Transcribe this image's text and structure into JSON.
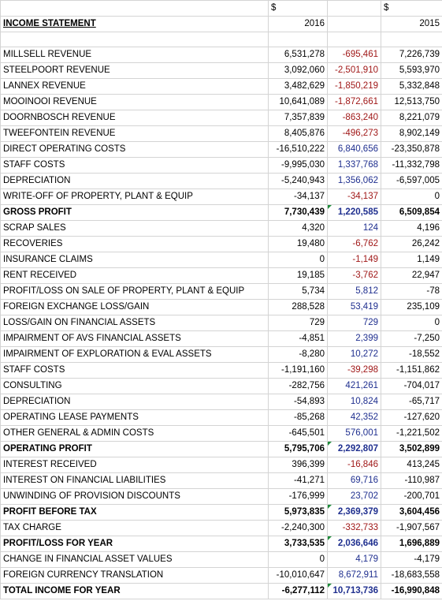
{
  "header": {
    "currency_2016": "$",
    "currency_2015": "$",
    "title": "INCOME STATEMENT",
    "year_2016": "2016",
    "year_2015": "2015"
  },
  "rows": [
    {
      "label": "MILLSELL REVENUE",
      "v2016": "6,531,278",
      "diff": "-695,461",
      "dsign": "neg",
      "v2015": "7,226,739"
    },
    {
      "label": "STEELPOORT REVENUE",
      "v2016": "3,092,060",
      "diff": "-2,501,910",
      "dsign": "neg",
      "v2015": "5,593,970"
    },
    {
      "label": "LANNEX REVENUE",
      "v2016": "3,482,629",
      "diff": "-1,850,219",
      "dsign": "neg",
      "v2015": "5,332,848"
    },
    {
      "label": "MOOINOOI REVENUE",
      "v2016": "10,641,089",
      "diff": "-1,872,661",
      "dsign": "neg",
      "v2015": "12,513,750"
    },
    {
      "label": "DOORNBOSCH REVENUE",
      "v2016": "7,357,839",
      "diff": "-863,240",
      "dsign": "neg",
      "v2015": "8,221,079"
    },
    {
      "label": "TWEEFONTEIN REVENUE",
      "v2016": "8,405,876",
      "diff": "-496,273",
      "dsign": "neg",
      "v2015": "8,902,149"
    },
    {
      "label": "DIRECT OPERATING COSTS",
      "v2016": "-16,510,222",
      "diff": "6,840,656",
      "dsign": "pos",
      "v2015": "-23,350,878"
    },
    {
      "label": "STAFF COSTS",
      "v2016": "-9,995,030",
      "diff": "1,337,768",
      "dsign": "pos",
      "v2015": "-11,332,798"
    },
    {
      "label": "DEPRECIATION",
      "v2016": "-5,240,943",
      "diff": "1,356,062",
      "dsign": "pos",
      "v2015": "-6,597,005"
    },
    {
      "label": "WRITE-OFF OF PROPERTY, PLANT & EQUIP",
      "v2016": "-34,137",
      "diff": "-34,137",
      "dsign": "neg",
      "v2015": "0"
    },
    {
      "label": "GROSS PROFIT",
      "v2016": "7,730,439",
      "diff": "1,220,585",
      "dsign": "pos",
      "v2015": "6,509,854",
      "bold": true,
      "flag": true
    },
    {
      "label": "SCRAP SALES",
      "v2016": "4,320",
      "diff": "124",
      "dsign": "pos",
      "v2015": "4,196"
    },
    {
      "label": "RECOVERIES",
      "v2016": "19,480",
      "diff": "-6,762",
      "dsign": "neg",
      "v2015": "26,242"
    },
    {
      "label": "INSURANCE CLAIMS",
      "v2016": "0",
      "diff": "-1,149",
      "dsign": "neg",
      "v2015": "1,149"
    },
    {
      "label": "RENT RECEIVED",
      "v2016": "19,185",
      "diff": "-3,762",
      "dsign": "neg",
      "v2015": "22,947"
    },
    {
      "label": "PROFIT/LOSS ON SALE OF PROPERTY, PLANT & EQUIP",
      "v2016": "5,734",
      "diff": "5,812",
      "dsign": "pos",
      "v2015": "-78"
    },
    {
      "label": "FOREIGN EXCHANGE LOSS/GAIN",
      "v2016": "288,528",
      "diff": "53,419",
      "dsign": "pos",
      "v2015": "235,109"
    },
    {
      "label": "LOSS/GAIN ON FINANCIAL ASSETS",
      "v2016": "729",
      "diff": "729",
      "dsign": "pos",
      "v2015": "0"
    },
    {
      "label": "IMPAIRMENT OF AVS FINANCIAL ASSETS",
      "v2016": "-4,851",
      "diff": "2,399",
      "dsign": "pos",
      "v2015": "-7,250"
    },
    {
      "label": "IMPAIRMENT OF EXPLORATION & EVAL ASSETS",
      "v2016": "-8,280",
      "diff": "10,272",
      "dsign": "pos",
      "v2015": "-18,552"
    },
    {
      "label": "STAFF COSTS",
      "v2016": "-1,191,160",
      "diff": "-39,298",
      "dsign": "neg",
      "v2015": "-1,151,862"
    },
    {
      "label": "CONSULTING",
      "v2016": "-282,756",
      "diff": "421,261",
      "dsign": "pos",
      "v2015": "-704,017"
    },
    {
      "label": "DEPRECIATION",
      "v2016": "-54,893",
      "diff": "10,824",
      "dsign": "pos",
      "v2015": "-65,717"
    },
    {
      "label": "OPERATING LEASE PAYMENTS",
      "v2016": "-85,268",
      "diff": "42,352",
      "dsign": "pos",
      "v2015": "-127,620"
    },
    {
      "label": "OTHER GENERAL & ADMIN COSTS",
      "v2016": "-645,501",
      "diff": "576,001",
      "dsign": "pos",
      "v2015": "-1,221,502"
    },
    {
      "label": "OPERATING PROFIT",
      "v2016": "5,795,706",
      "diff": "2,292,807",
      "dsign": "pos",
      "v2015": "3,502,899",
      "bold": true,
      "flag": true
    },
    {
      "label": "INTEREST RECEIVED",
      "v2016": "396,399",
      "diff": "-16,846",
      "dsign": "neg",
      "v2015": "413,245"
    },
    {
      "label": "INTEREST ON FINANCIAL LIABILITIES",
      "v2016": "-41,271",
      "diff": "69,716",
      "dsign": "pos",
      "v2015": "-110,987"
    },
    {
      "label": "UNWINDING OF PROVISION DISCOUNTS",
      "v2016": "-176,999",
      "diff": "23,702",
      "dsign": "pos",
      "v2015": "-200,701"
    },
    {
      "label": "PROFIT BEFORE TAX",
      "v2016": "5,973,835",
      "diff": "2,369,379",
      "dsign": "pos",
      "v2015": "3,604,456",
      "bold": true,
      "flag": true
    },
    {
      "label": "TAX CHARGE",
      "v2016": "-2,240,300",
      "diff": "-332,733",
      "dsign": "neg",
      "v2015": "-1,907,567"
    },
    {
      "label": "PROFIT/LOSS FOR YEAR",
      "v2016": "3,733,535",
      "diff": "2,036,646",
      "dsign": "pos",
      "v2015": "1,696,889",
      "bold": true,
      "flag": true
    },
    {
      "label": "CHANGE IN FINANCIAL ASSET VALUES",
      "v2016": "0",
      "diff": "4,179",
      "dsign": "pos",
      "v2015": "-4,179"
    },
    {
      "label": "FOREIGN CURRENCY TRANSLATION",
      "v2016": "-10,010,647",
      "diff": "8,672,911",
      "dsign": "pos",
      "v2015": "-18,683,558"
    },
    {
      "label": "TOTAL INCOME FOR YEAR",
      "v2016": "-6,277,112",
      "diff": "10,713,736",
      "dsign": "pos",
      "v2015": "-16,990,848",
      "bold": true,
      "flag": true
    }
  ]
}
